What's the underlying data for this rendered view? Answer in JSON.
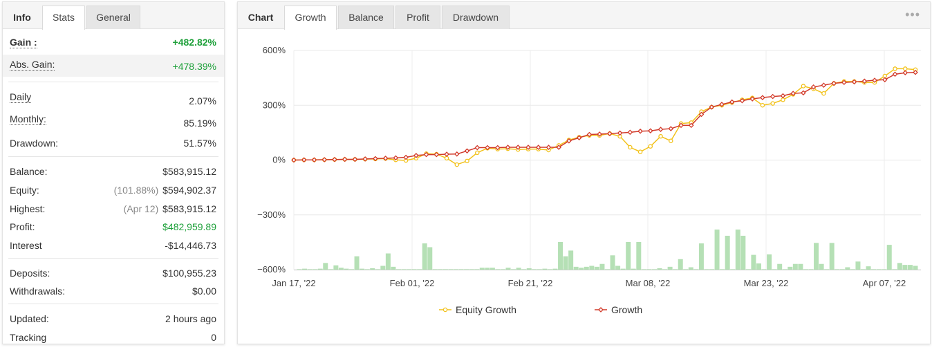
{
  "left_panel": {
    "tabs": [
      {
        "label": "Info",
        "state": "plain"
      },
      {
        "label": "Stats",
        "state": "active"
      },
      {
        "label": "General",
        "state": "inactive"
      }
    ],
    "stats": [
      {
        "key": "gain",
        "label": "Gain :",
        "value": "+482.82%",
        "style": "bold-green",
        "shaded": false
      },
      {
        "key": "abs_gain",
        "label": "Abs. Gain:",
        "value": "+478.39%",
        "style": "green-dotted",
        "shaded": true
      },
      {
        "key": "daily",
        "label": "Daily",
        "value": "2.07%",
        "style": "dotted"
      },
      {
        "key": "monthly",
        "label": "Monthly:",
        "value": "85.19%",
        "style": "dotted"
      },
      {
        "key": "drawdown",
        "label": "Drawdown:",
        "value": "51.57%",
        "style": "plain"
      },
      {
        "key": "balance",
        "label": "Balance:",
        "value": "$583,915.12",
        "style": "plain"
      },
      {
        "key": "equity",
        "label": "Equity:",
        "sub": "(101.88%)",
        "value": "$594,902.37",
        "style": "plain"
      },
      {
        "key": "highest",
        "label": "Highest:",
        "sub": "(Apr 12)",
        "value": "$583,915.12",
        "style": "plain"
      },
      {
        "key": "profit",
        "label": "Profit:",
        "value": "$482,959.89",
        "style": "green"
      },
      {
        "key": "interest",
        "label": "Interest",
        "value": "-$14,446.73",
        "style": "plain"
      },
      {
        "key": "deposits",
        "label": "Deposits:",
        "value": "$100,955.23",
        "style": "plain"
      },
      {
        "key": "withdrawals",
        "label": "Withdrawals:",
        "value": "$0.00",
        "style": "plain"
      },
      {
        "key": "updated",
        "label": "Updated:",
        "value": "2 hours ago",
        "style": "plain"
      },
      {
        "key": "tracking",
        "label": "Tracking",
        "value": "0",
        "style": "plain"
      }
    ]
  },
  "right_panel": {
    "tabs": [
      {
        "label": "Chart",
        "state": "plain"
      },
      {
        "label": "Growth",
        "state": "active"
      },
      {
        "label": "Balance",
        "state": "inactive"
      },
      {
        "label": "Profit",
        "state": "inactive"
      },
      {
        "label": "Drawdown",
        "state": "inactive"
      }
    ],
    "menu_icon": "more-dots-icon"
  },
  "colors": {
    "green": "#1ea03a",
    "equity_line": "#f2c21b",
    "growth_line": "#d23a2a",
    "bars": "#b5e0b5"
  },
  "chart_data": {
    "type": "line",
    "y_ticks": [
      "600%",
      "300%",
      "0%",
      "−300%",
      "−600%"
    ],
    "ylim": [
      -600,
      600
    ],
    "x_tick_labels": [
      "Jan 17, '22",
      "Feb 01, '22",
      "Feb 21, '22",
      "Mar 08, '22",
      "Mar 23, '22",
      "Apr 07, '22"
    ],
    "series": [
      {
        "name": "Equity Growth",
        "values": [
          0,
          1,
          1,
          2,
          3,
          4,
          4,
          5,
          6,
          8,
          1,
          -2,
          10,
          35,
          32,
          10,
          -25,
          -5,
          40,
          65,
          60,
          62,
          58,
          60,
          60,
          55,
          80,
          110,
          125,
          135,
          135,
          145,
          130,
          70,
          45,
          75,
          130,
          105,
          200,
          205,
          265,
          290,
          300,
          315,
          330,
          340,
          300,
          310,
          330,
          360,
          405,
          390,
          365,
          420,
          430,
          430,
          425,
          425,
          460,
          500,
          500,
          495
        ]
      },
      {
        "name": "Growth",
        "values": [
          0,
          1,
          1,
          2,
          3,
          4,
          4,
          6,
          8,
          10,
          12,
          15,
          25,
          30,
          30,
          32,
          33,
          50,
          68,
          68,
          68,
          70,
          70,
          70,
          70,
          70,
          70,
          105,
          122,
          140,
          142,
          145,
          148,
          152,
          158,
          160,
          168,
          172,
          190,
          190,
          250,
          290,
          305,
          318,
          325,
          335,
          342,
          348,
          352,
          365,
          368,
          400,
          410,
          420,
          425,
          428,
          432,
          437,
          440,
          470,
          478,
          480
        ]
      }
    ],
    "bars": {
      "description_values": "volume",
      "values": [
        1,
        2,
        1,
        1,
        2,
        14,
        1,
        9,
        4,
        2,
        1,
        28,
        2,
        1,
        3,
        1,
        8,
        34,
        6,
        1,
        1,
        1,
        1,
        1,
        55,
        47,
        1,
        1,
        1,
        1,
        1,
        1,
        1,
        1,
        1,
        4,
        4,
        4,
        1,
        1,
        4,
        1,
        4,
        1,
        3,
        1,
        1,
        2,
        1,
        2,
        58,
        28,
        40,
        6,
        4,
        6,
        8,
        6,
        12,
        1,
        30,
        8,
        2,
        58,
        2,
        58,
        1,
        1,
        1,
        3,
        1,
        6,
        1,
        22,
        1,
        5,
        1,
        55,
        1,
        1,
        84,
        1,
        71,
        1,
        84,
        71,
        1,
        31,
        13,
        1,
        32,
        1,
        12,
        1,
        6,
        12,
        12,
        1,
        1,
        56,
        12,
        1,
        56,
        1,
        1,
        5,
        1,
        17,
        1,
        7,
        1,
        1,
        1,
        52,
        1,
        14,
        10,
        10,
        8
      ]
    },
    "legend": {
      "placement": "bottom-center"
    }
  }
}
